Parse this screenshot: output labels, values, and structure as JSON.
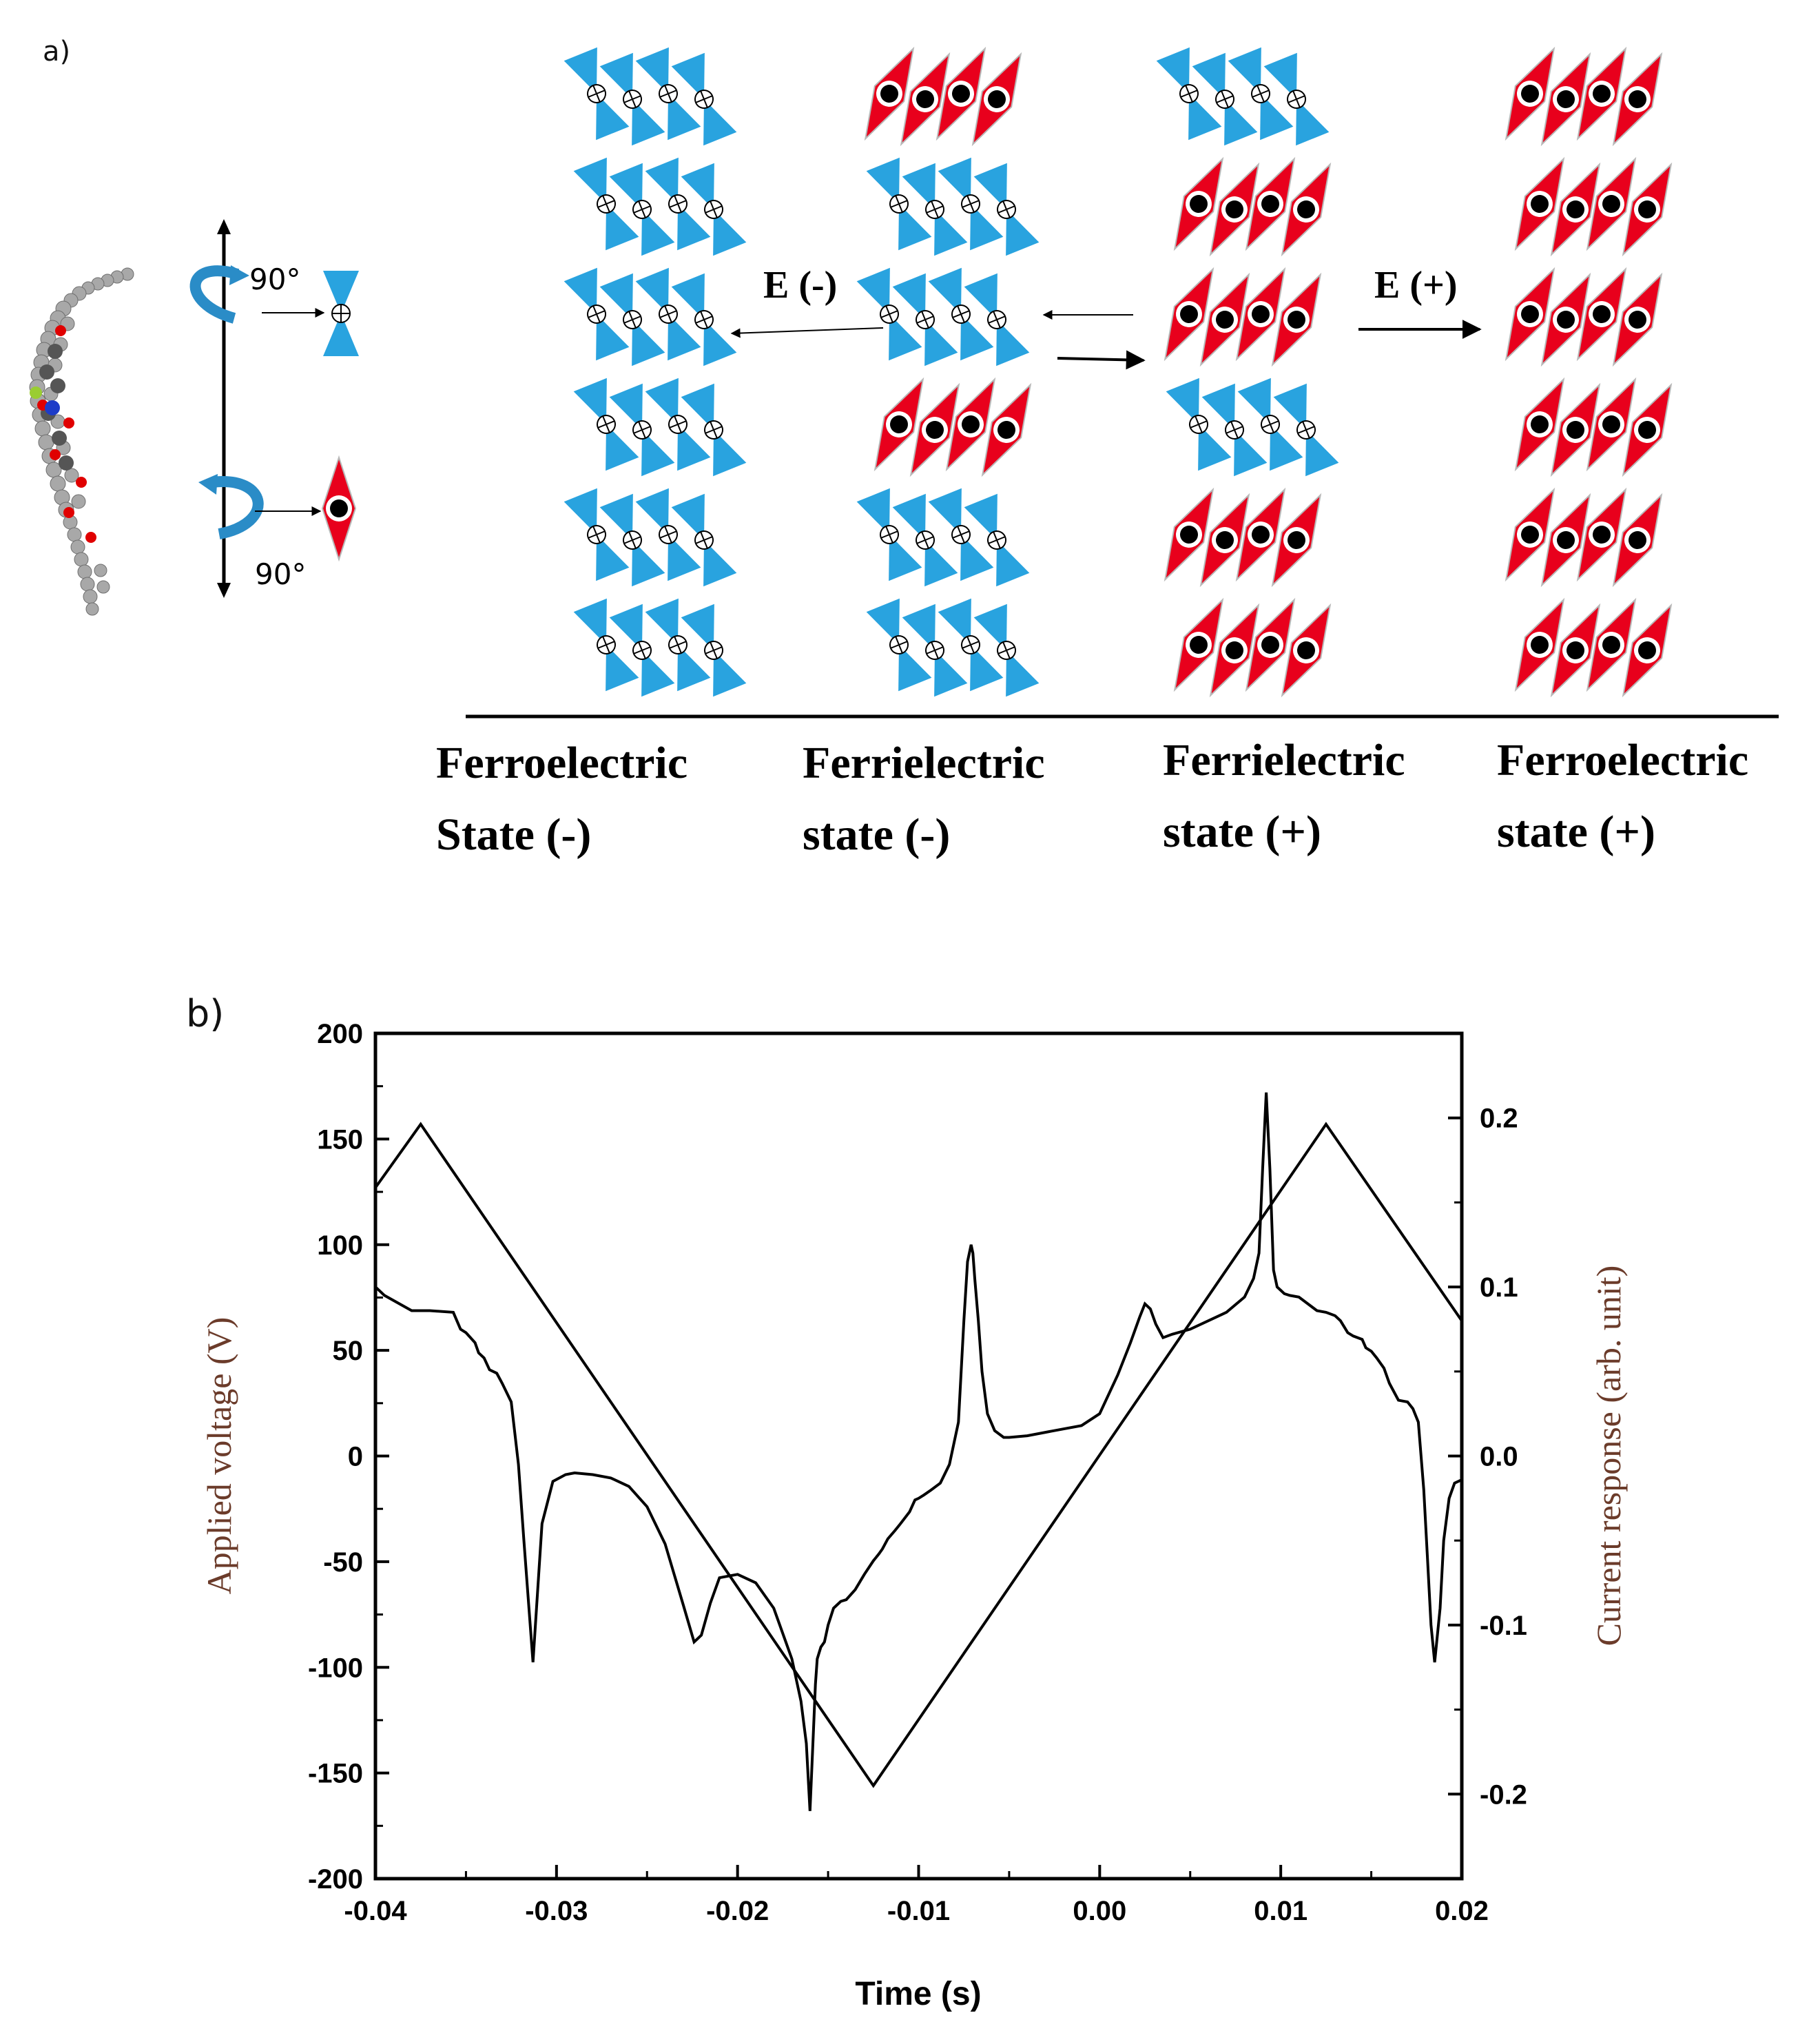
{
  "panel_a": {
    "label": "a)",
    "rotation_label_top": "90°",
    "rotation_label_bottom": "90°",
    "field_negative": "E (-)",
    "field_positive": "E (+)",
    "colors": {
      "blue_unit": "#29a3df",
      "red_unit": "#e8001c"
    },
    "columns": [
      {
        "line1": "Ferroelectric",
        "line2": "State (-)",
        "rows": [
          "blue",
          "blue",
          "blue",
          "blue",
          "blue",
          "blue"
        ]
      },
      {
        "line1": "Ferrielectric",
        "line2": "state (-)",
        "rows": [
          "red",
          "blue",
          "blue",
          "red",
          "blue",
          "blue"
        ]
      },
      {
        "line1": "Ferrielectric",
        "line2": "state (+)",
        "rows": [
          "blue",
          "red",
          "red",
          "blue",
          "red",
          "red"
        ]
      },
      {
        "line1": "Ferroelectric",
        "line2": "state (+)",
        "rows": [
          "red",
          "red",
          "red",
          "red",
          "red",
          "red"
        ]
      }
    ]
  },
  "panel_b": {
    "label": "b)",
    "chart_data": {
      "type": "line",
      "xlabel": "Time (s)",
      "ylabel_left": "Applied voltage (V)",
      "ylabel_right": "Current response (arb. unit)",
      "xlim": [
        -0.04,
        0.02
      ],
      "ylim_left": [
        -200,
        200
      ],
      "ylim_right": [
        -0.25,
        0.25
      ],
      "x_ticks": [
        "-0.04",
        "-0.03",
        "-0.02",
        "-0.01",
        "0.00",
        "0.01",
        "0.02"
      ],
      "y_left_ticks": [
        "200",
        "150",
        "100",
        "50",
        "0",
        "-50",
        "-100",
        "-150",
        "-200"
      ],
      "y_right_ticks": [
        "0.2",
        "0.1",
        "0.0",
        "-0.1",
        "-0.2"
      ],
      "series": [
        {
          "axis": "left",
          "x": [
            -0.04,
            -0.0375,
            -0.0125,
            0.0125,
            0.02
          ],
          "y": [
            127,
            157,
            -156,
            157,
            64
          ]
        },
        {
          "axis": "right",
          "x": [
            -0.04,
            -0.0395,
            -0.038,
            -0.037,
            -0.0357,
            -0.0353,
            -0.035,
            -0.0345,
            -0.0343,
            -0.034,
            -0.0337,
            -0.0333,
            -0.033,
            -0.0325,
            -0.0321,
            -0.0318,
            -0.0313,
            -0.0308,
            -0.0302,
            -0.0295,
            -0.029,
            -0.028,
            -0.027,
            -0.026,
            -0.025,
            -0.024,
            -0.023,
            -0.0224,
            -0.022,
            -0.0215,
            -0.021,
            -0.02,
            -0.019,
            -0.018,
            -0.017,
            -0.0165,
            -0.0162,
            -0.016,
            -0.0158,
            -0.0157,
            -0.0156,
            -0.0154,
            -0.0152,
            -0.015,
            -0.0147,
            -0.0143,
            -0.014,
            -0.0135,
            -0.013,
            -0.0125,
            -0.0122,
            -0.012,
            -0.0117,
            -0.0113,
            -0.011,
            -0.0105,
            -0.0102,
            -0.01,
            -0.0097,
            -0.0093,
            -0.0088,
            -0.0083,
            -0.0078,
            -0.0075,
            -0.0073,
            -0.0071,
            -0.007,
            -0.0069,
            -0.0067,
            -0.0065,
            -0.0062,
            -0.0058,
            -0.0053,
            -0.005,
            -0.004,
            -0.003,
            -0.002,
            -0.001,
            0.0,
            0.001,
            0.0017,
            0.0022,
            0.0025,
            0.0028,
            0.0031,
            0.0035,
            0.004,
            0.005,
            0.006,
            0.007,
            0.008,
            0.0085,
            0.0088,
            0.009,
            0.0092,
            0.0094,
            0.0096,
            0.0098,
            0.01,
            0.0102,
            0.0105,
            0.011,
            0.0115,
            0.012,
            0.0125,
            0.013,
            0.0133,
            0.0137,
            0.014,
            0.0145,
            0.0147,
            0.015,
            0.0153,
            0.0157,
            0.016,
            0.0165,
            0.017,
            0.0173,
            0.0176,
            0.0179,
            0.0181,
            0.0183,
            0.0185,
            0.0188,
            0.019,
            0.0193,
            0.0196,
            0.02
          ],
          "y": [
            0.1,
            0.095,
            0.086,
            0.086,
            0.085,
            0.075,
            0.073,
            0.067,
            0.061,
            0.058,
            0.051,
            0.049,
            0.043,
            0.032,
            -0.005,
            -0.05,
            -0.122,
            -0.04,
            -0.015,
            -0.011,
            -0.01,
            -0.011,
            -0.013,
            -0.018,
            -0.03,
            -0.052,
            -0.088,
            -0.11,
            -0.106,
            -0.087,
            -0.072,
            -0.07,
            -0.075,
            -0.09,
            -0.12,
            -0.145,
            -0.17,
            -0.21,
            -0.16,
            -0.135,
            -0.12,
            -0.113,
            -0.11,
            -0.1,
            -0.09,
            -0.086,
            -0.085,
            -0.079,
            -0.07,
            -0.062,
            -0.058,
            -0.055,
            -0.049,
            -0.044,
            -0.04,
            -0.033,
            -0.026,
            -0.025,
            -0.023,
            -0.02,
            -0.016,
            -0.005,
            0.02,
            0.08,
            0.115,
            0.125,
            0.12,
            0.105,
            0.08,
            0.05,
            0.025,
            0.015,
            0.011,
            0.011,
            0.012,
            0.014,
            0.016,
            0.018,
            0.025,
            0.048,
            0.067,
            0.082,
            0.09,
            0.087,
            0.078,
            0.07,
            0.072,
            0.075,
            0.08,
            0.085,
            0.094,
            0.105,
            0.12,
            0.17,
            0.215,
            0.17,
            0.11,
            0.1,
            0.098,
            0.096,
            0.095,
            0.094,
            0.09,
            0.086,
            0.085,
            0.083,
            0.08,
            0.073,
            0.071,
            0.069,
            0.064,
            0.062,
            0.058,
            0.052,
            0.043,
            0.033,
            0.032,
            0.028,
            0.02,
            -0.02,
            -0.06,
            -0.1,
            -0.122,
            -0.09,
            -0.05,
            -0.025,
            -0.016,
            -0.014
          ]
        }
      ]
    }
  }
}
